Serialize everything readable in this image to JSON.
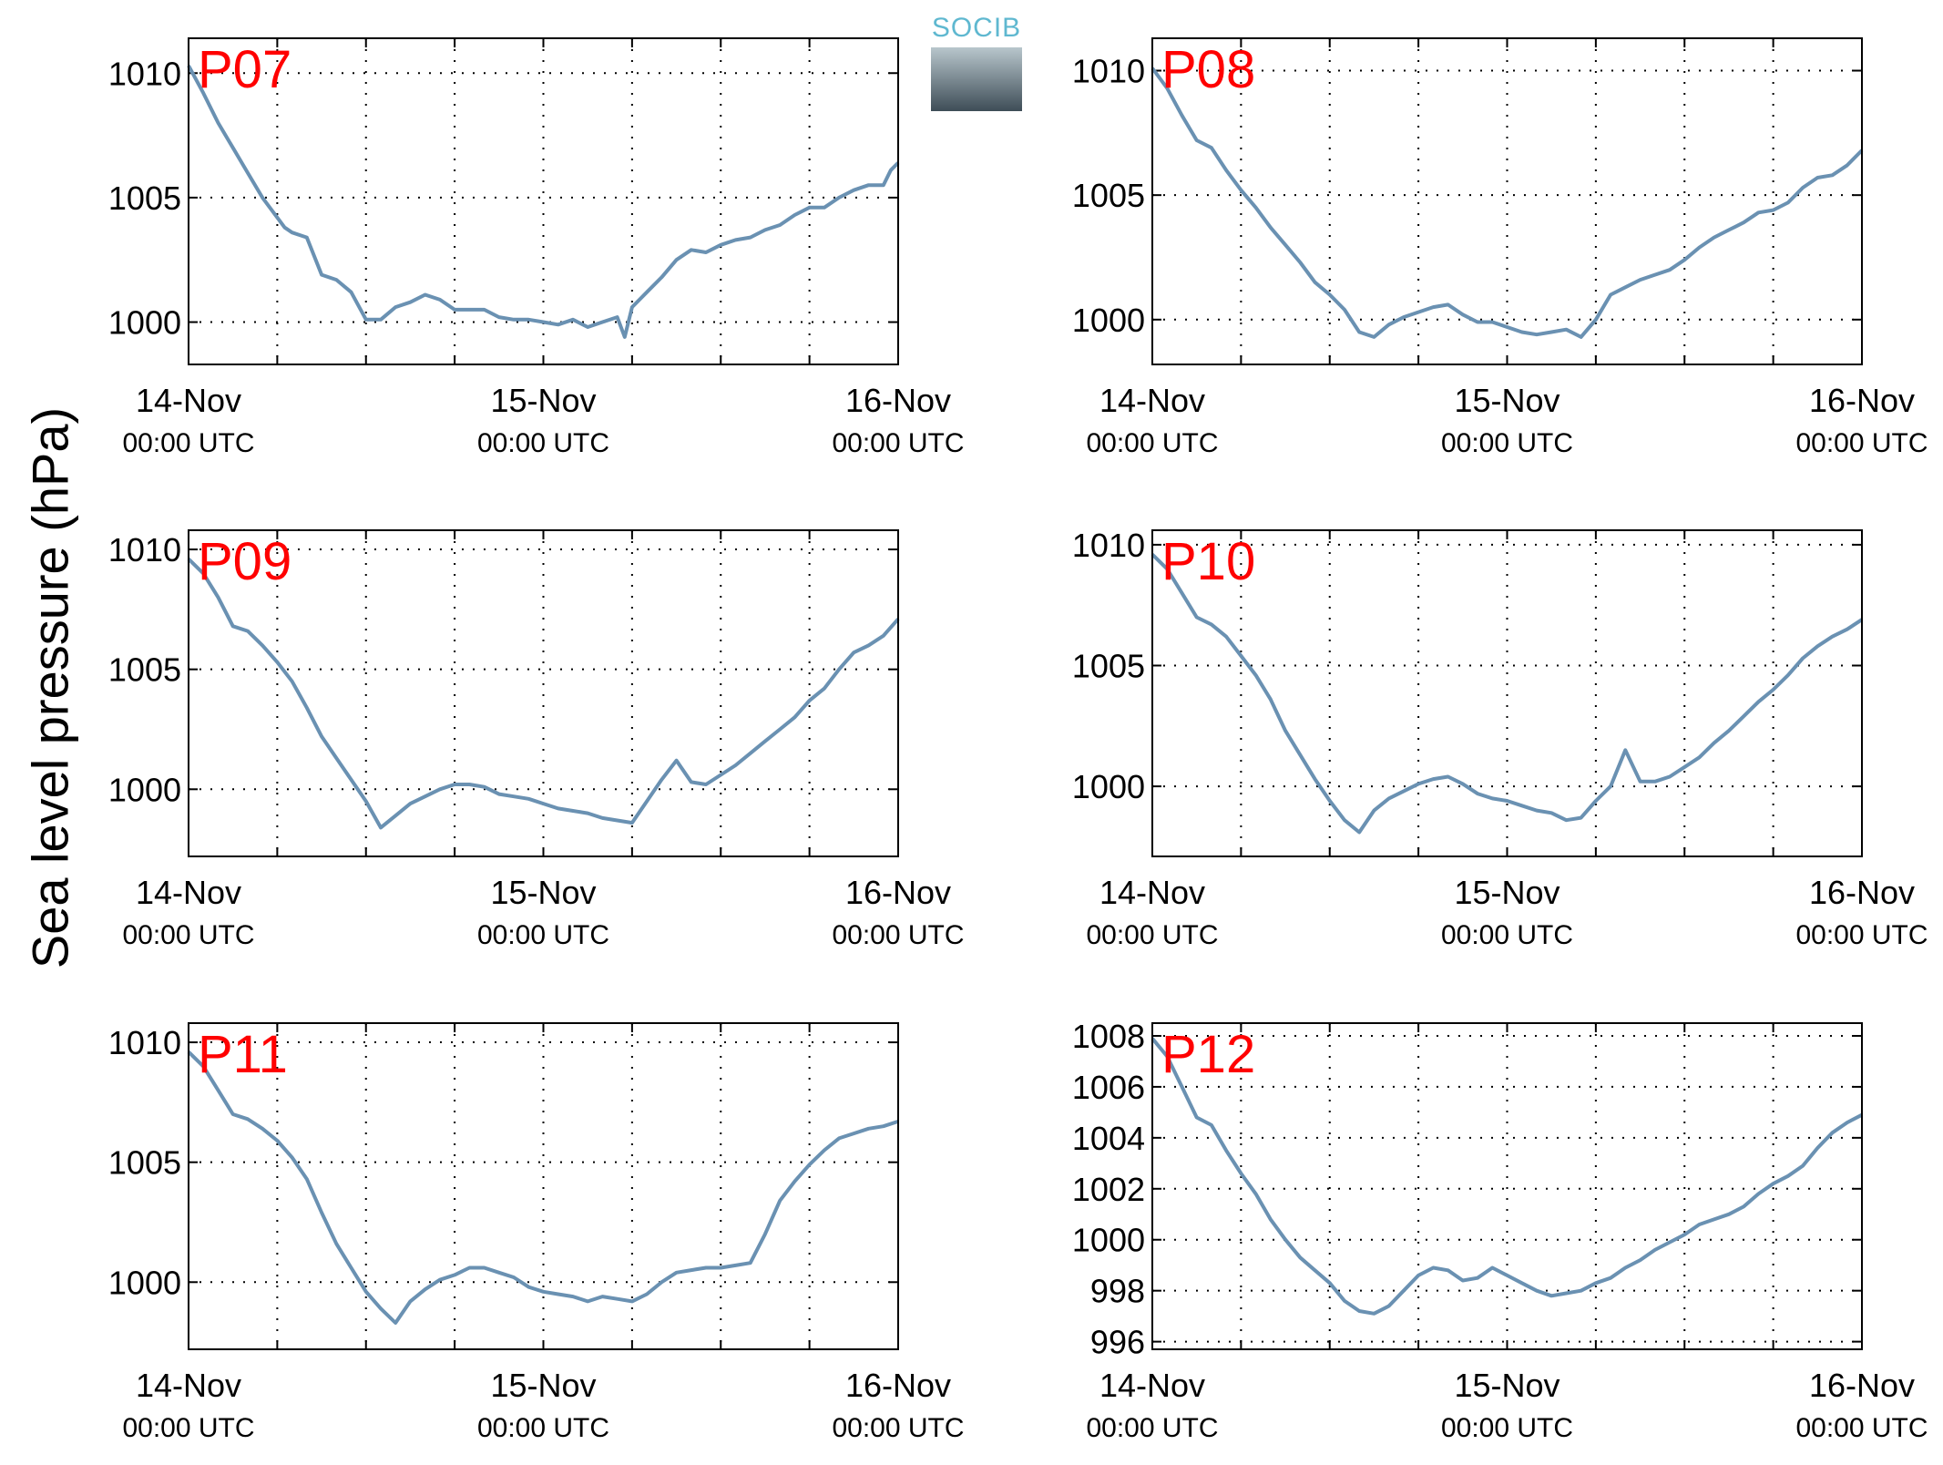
{
  "figure": {
    "ylabel": "Sea level pressure (hPa)",
    "logo_text": "SOCIB",
    "line_color": "#6a91b2",
    "label_color": "#ff0000"
  },
  "chart_data": [
    {
      "type": "line",
      "station": "P07",
      "xticks": [
        "14-Nov",
        "15-Nov",
        "16-Nov"
      ],
      "xticks_sub": "00:00 UTC",
      "xlim": [
        0,
        48
      ],
      "ylim": [
        998.3,
        1011.4
      ],
      "yticks": [
        1000,
        1005,
        1010
      ],
      "grid": true,
      "x": [
        0,
        1,
        2,
        3,
        4,
        5,
        6,
        6.5,
        7,
        8,
        9,
        10,
        11,
        12,
        13,
        14,
        15,
        16,
        17,
        18,
        19,
        20,
        21,
        22,
        23,
        24,
        25,
        26,
        27,
        28,
        29,
        29.5,
        30,
        31,
        32,
        33,
        34,
        35,
        36,
        37,
        38,
        39,
        40,
        41,
        42,
        43,
        44,
        45,
        46,
        47,
        47.5,
        48
      ],
      "y": [
        1010.3,
        1009.2,
        1008.0,
        1007.0,
        1006.0,
        1005.0,
        1004.2,
        1003.8,
        1003.6,
        1003.4,
        1001.9,
        1001.7,
        1001.2,
        1000.1,
        1000.1,
        1000.6,
        1000.8,
        1001.1,
        1000.9,
        1000.5,
        1000.5,
        1000.5,
        1000.2,
        1000.1,
        1000.1,
        1000.0,
        999.9,
        1000.1,
        999.8,
        1000.0,
        1000.2,
        999.4,
        1000.6,
        1001.2,
        1001.8,
        1002.5,
        1002.9,
        1002.8,
        1003.1,
        1003.3,
        1003.4,
        1003.7,
        1003.9,
        1004.3,
        1004.6,
        1004.6,
        1005.0,
        1005.3,
        1005.5,
        1005.5,
        1006.1,
        1006.4
      ]
    },
    {
      "type": "line",
      "station": "P08",
      "xticks": [
        "14-Nov",
        "15-Nov",
        "16-Nov"
      ],
      "xticks_sub": "00:00 UTC",
      "xlim": [
        0,
        48
      ],
      "ylim": [
        998.2,
        1011.3
      ],
      "yticks": [
        1000,
        1005,
        1010
      ],
      "grid": true,
      "x": [
        0,
        1,
        2,
        3,
        4,
        5,
        6,
        7,
        8,
        9,
        10,
        11,
        12,
        13,
        14,
        15,
        16,
        17,
        18,
        19,
        20,
        21,
        22,
        23,
        24,
        25,
        26,
        27,
        28,
        29,
        30,
        31,
        32,
        33,
        34,
        35,
        36,
        37,
        38,
        39,
        40,
        41,
        42,
        43,
        44,
        45,
        46,
        47,
        48
      ],
      "y": [
        1010.1,
        1009.3,
        1008.2,
        1007.2,
        1006.9,
        1006.0,
        1005.2,
        1004.5,
        1003.7,
        1003.0,
        1002.3,
        1001.5,
        1001.0,
        1000.4,
        999.5,
        999.3,
        999.8,
        1000.1,
        1000.3,
        1000.5,
        1000.6,
        1000.2,
        999.9,
        999.9,
        999.7,
        999.5,
        999.4,
        999.5,
        999.6,
        999.3,
        1000.0,
        1001.0,
        1001.3,
        1001.6,
        1001.8,
        1002.0,
        1002.4,
        1002.9,
        1003.3,
        1003.6,
        1003.9,
        1004.3,
        1004.4,
        1004.7,
        1005.3,
        1005.7,
        1005.8,
        1006.2,
        1006.8
      ]
    },
    {
      "type": "line",
      "station": "P09",
      "xticks": [
        "14-Nov",
        "15-Nov",
        "16-Nov"
      ],
      "xticks_sub": "00:00 UTC",
      "xlim": [
        0,
        48
      ],
      "ylim": [
        997.2,
        1010.8
      ],
      "yticks": [
        1000,
        1005,
        1010
      ],
      "grid": true,
      "x": [
        0,
        1,
        2,
        3,
        4,
        5,
        6,
        7,
        8,
        9,
        10,
        11,
        12,
        13,
        14,
        15,
        16,
        17,
        18,
        19,
        20,
        21,
        22,
        23,
        24,
        25,
        26,
        27,
        28,
        29,
        30,
        31,
        32,
        33,
        34,
        35,
        36,
        37,
        38,
        39,
        40,
        41,
        42,
        43,
        44,
        45,
        46,
        47,
        48
      ],
      "y": [
        1009.6,
        1009.0,
        1008.0,
        1006.8,
        1006.6,
        1006.0,
        1005.3,
        1004.5,
        1003.4,
        1002.2,
        1001.3,
        1000.4,
        999.5,
        998.4,
        998.9,
        999.4,
        999.7,
        1000.0,
        1000.2,
        1000.2,
        1000.1,
        999.8,
        999.7,
        999.6,
        999.4,
        999.2,
        999.1,
        999.0,
        998.8,
        998.7,
        998.6,
        999.5,
        1000.4,
        1001.2,
        1000.3,
        1000.2,
        1000.6,
        1001.0,
        1001.5,
        1002.0,
        1002.5,
        1003.0,
        1003.7,
        1004.2,
        1005.0,
        1005.7,
        1006.0,
        1006.4,
        1007.1
      ]
    },
    {
      "type": "line",
      "station": "P10",
      "xticks": [
        "14-Nov",
        "15-Nov",
        "16-Nov"
      ],
      "xticks_sub": "00:00 UTC",
      "xlim": [
        0,
        48
      ],
      "ylim": [
        997.1,
        1010.6
      ],
      "yticks": [
        1000,
        1005,
        1010
      ],
      "grid": true,
      "x": [
        0,
        1,
        2,
        3,
        4,
        5,
        6,
        7,
        8,
        9,
        10,
        11,
        12,
        13,
        14,
        15,
        16,
        17,
        18,
        19,
        20,
        21,
        22,
        23,
        24,
        25,
        26,
        27,
        28,
        29,
        30,
        31,
        32,
        33,
        34,
        35,
        36,
        37,
        38,
        39,
        40,
        41,
        42,
        43,
        44,
        45,
        46,
        47,
        48
      ],
      "y": [
        1009.6,
        1009.0,
        1008.0,
        1007.0,
        1006.7,
        1006.2,
        1005.4,
        1004.6,
        1003.6,
        1002.3,
        1001.3,
        1000.3,
        999.4,
        998.6,
        998.1,
        999.0,
        999.5,
        999.8,
        1000.1,
        1000.3,
        1000.4,
        1000.1,
        999.7,
        999.5,
        999.4,
        999.2,
        999.0,
        998.9,
        998.6,
        998.7,
        999.4,
        1000.0,
        1001.5,
        1000.2,
        1000.2,
        1000.4,
        1000.8,
        1001.2,
        1001.8,
        1002.3,
        1002.9,
        1003.5,
        1004.0,
        1004.6,
        1005.3,
        1005.8,
        1006.2,
        1006.5,
        1006.9
      ]
    },
    {
      "type": "line",
      "station": "P11",
      "xticks": [
        "14-Nov",
        "15-Nov",
        "16-Nov"
      ],
      "xticks_sub": "00:00 UTC",
      "xlim": [
        0,
        48
      ],
      "ylim": [
        997.2,
        1010.8
      ],
      "yticks": [
        1000,
        1005,
        1010
      ],
      "grid": true,
      "x": [
        0,
        1,
        2,
        3,
        4,
        5,
        6,
        7,
        8,
        9,
        10,
        11,
        12,
        13,
        14,
        15,
        16,
        17,
        18,
        19,
        20,
        21,
        22,
        23,
        24,
        25,
        26,
        27,
        28,
        29,
        30,
        31,
        32,
        33,
        34,
        35,
        36,
        37,
        38,
        39,
        40,
        41,
        42,
        43,
        44,
        45,
        46,
        47,
        48
      ],
      "y": [
        1009.6,
        1009.0,
        1008.0,
        1007.0,
        1006.8,
        1006.4,
        1005.9,
        1005.2,
        1004.3,
        1002.9,
        1001.6,
        1000.6,
        999.6,
        998.9,
        998.3,
        999.2,
        999.7,
        1000.1,
        1000.3,
        1000.6,
        1000.6,
        1000.4,
        1000.2,
        999.8,
        999.6,
        999.5,
        999.4,
        999.2,
        999.4,
        999.3,
        999.2,
        999.5,
        1000.0,
        1000.4,
        1000.5,
        1000.6,
        1000.6,
        1000.7,
        1000.8,
        1002.0,
        1003.4,
        1004.2,
        1004.9,
        1005.5,
        1006.0,
        1006.2,
        1006.4,
        1006.5,
        1006.7
      ]
    },
    {
      "type": "line",
      "station": "P12",
      "xticks": [
        "14-Nov",
        "15-Nov",
        "16-Nov"
      ],
      "xticks_sub": "00:00 UTC",
      "xlim": [
        0,
        48
      ],
      "ylim": [
        995.7,
        1008.5
      ],
      "yticks": [
        996,
        998,
        1000,
        1002,
        1004,
        1006,
        1008
      ],
      "grid": true,
      "x": [
        0,
        1,
        2,
        3,
        4,
        5,
        6,
        7,
        8,
        9,
        10,
        11,
        12,
        13,
        14,
        15,
        16,
        17,
        18,
        19,
        20,
        21,
        22,
        23,
        24,
        25,
        26,
        27,
        28,
        29,
        30,
        31,
        32,
        33,
        34,
        35,
        36,
        37,
        38,
        39,
        40,
        41,
        42,
        43,
        44,
        45,
        46,
        47,
        48
      ],
      "y": [
        1007.9,
        1007.2,
        1006.0,
        1004.8,
        1004.5,
        1003.5,
        1002.6,
        1001.8,
        1000.8,
        1000.0,
        999.3,
        998.8,
        998.3,
        997.6,
        997.2,
        997.1,
        997.4,
        998.0,
        998.6,
        998.9,
        998.8,
        998.4,
        998.5,
        998.9,
        998.6,
        998.3,
        998.0,
        997.8,
        997.9,
        998.0,
        998.3,
        998.5,
        998.9,
        999.2,
        999.6,
        999.9,
        1000.2,
        1000.6,
        1000.8,
        1001.0,
        1001.3,
        1001.8,
        1002.2,
        1002.5,
        1002.9,
        1003.6,
        1004.2,
        1004.6,
        1004.9
      ]
    }
  ]
}
